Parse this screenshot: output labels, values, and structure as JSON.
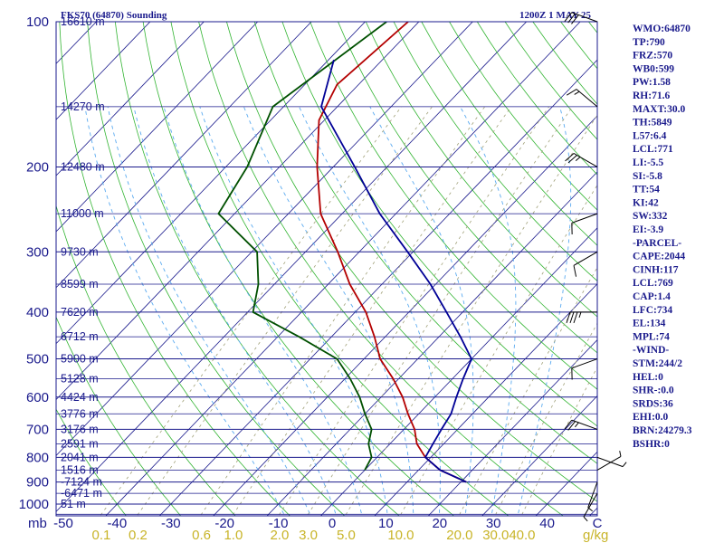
{
  "chart_data": {
    "type": "line",
    "title": "FKS70 (64870) Sounding",
    "valid_time": "1200Z  1 MAY 25",
    "pressure_axis_unit": "mb",
    "temperature_axis_unit": "C",
    "mixing_ratio_unit": "g/kg",
    "pressure_levels": [
      100,
      200,
      300,
      400,
      500,
      600,
      700,
      800,
      900,
      1000
    ],
    "pressure_range": [
      100,
      1050
    ],
    "temperature_ticks": [
      "-50",
      "-40",
      "-30",
      "-20",
      "-10",
      "0",
      "10",
      "20",
      "30",
      "40"
    ],
    "temperature_range": [
      -50,
      50
    ],
    "mixing_ratio_labels": [
      "0.1",
      "0.2",
      "0.6",
      "1.0",
      "2.0",
      "3.0",
      "5.0",
      "10.0",
      "20.0",
      "30.0",
      "40.0"
    ],
    "height_labels": [
      {
        "p": 100,
        "label": "16610 m"
      },
      {
        "p": 150,
        "label": "14270 m"
      },
      {
        "p": 200,
        "label": "12480 m"
      },
      {
        "p": 250,
        "label": "11000 m"
      },
      {
        "p": 300,
        "label": "9730 m"
      },
      {
        "p": 350,
        "label": "8599 m"
      },
      {
        "p": 400,
        "label": "7620 m"
      },
      {
        "p": 450,
        "label": "6712 m"
      },
      {
        "p": 500,
        "label": "5900 m"
      },
      {
        "p": 550,
        "label": "5128 m"
      },
      {
        "p": 600,
        "label": "4424 m"
      },
      {
        "p": 650,
        "label": "3776 m"
      },
      {
        "p": 700,
        "label": "3176 m"
      },
      {
        "p": 750,
        "label": "2591 m"
      },
      {
        "p": 800,
        "label": "2041 m"
      },
      {
        "p": 850,
        "label": "1516 m"
      },
      {
        "p": 900,
        "label": "-7124 m"
      },
      {
        "p": 950,
        "label": "-6471 m"
      },
      {
        "p": 1000,
        "label": "51 m"
      }
    ],
    "series": [
      {
        "name": "Temperature",
        "color": "#b40000",
        "points": [
          [
            100,
            -72
          ],
          [
            135,
            -74
          ],
          [
            160,
            -71
          ],
          [
            200,
            -63
          ],
          [
            250,
            -54
          ],
          [
            300,
            -44
          ],
          [
            350,
            -36
          ],
          [
            400,
            -28
          ],
          [
            450,
            -22
          ],
          [
            500,
            -17
          ],
          [
            550,
            -11
          ],
          [
            600,
            -6
          ],
          [
            650,
            -2
          ],
          [
            700,
            2
          ],
          [
            750,
            5
          ],
          [
            800,
            9
          ],
          [
            850,
            14
          ],
          [
            900,
            21
          ]
        ]
      },
      {
        "name": "Dewpoint",
        "color": "#005000",
        "points": [
          [
            100,
            -76
          ],
          [
            150,
            -82
          ],
          [
            200,
            -76
          ],
          [
            250,
            -73
          ],
          [
            300,
            -59
          ],
          [
            350,
            -53
          ],
          [
            400,
            -49
          ],
          [
            450,
            -36
          ],
          [
            500,
            -25
          ],
          [
            550,
            -19
          ],
          [
            600,
            -14
          ],
          [
            650,
            -10
          ],
          [
            700,
            -6
          ],
          [
            750,
            -4
          ],
          [
            800,
            -1
          ],
          [
            850,
            0
          ]
        ]
      },
      {
        "name": "Parcel",
        "color": "#000096",
        "points": [
          [
            120,
            -79
          ],
          [
            150,
            -73
          ],
          [
            200,
            -56
          ],
          [
            250,
            -43
          ],
          [
            300,
            -31
          ],
          [
            350,
            -21
          ],
          [
            400,
            -13
          ],
          [
            450,
            -6
          ],
          [
            500,
            0
          ],
          [
            550,
            2
          ],
          [
            600,
            4
          ],
          [
            650,
            6
          ],
          [
            700,
            7
          ],
          [
            750,
            8
          ],
          [
            800,
            9
          ],
          [
            850,
            14
          ],
          [
            900,
            21
          ]
        ]
      }
    ],
    "wind_barbs": [
      {
        "p": 100,
        "dir": 290,
        "spd": 30
      },
      {
        "p": 150,
        "dir": 310,
        "spd": 15
      },
      {
        "p": 200,
        "dir": 300,
        "spd": 25
      },
      {
        "p": 250,
        "dir": 250,
        "spd": 10
      },
      {
        "p": 300,
        "dir": 240,
        "spd": 10
      },
      {
        "p": 400,
        "dir": 270,
        "spd": 35
      },
      {
        "p": 500,
        "dir": 250,
        "spd": 10
      },
      {
        "p": 700,
        "dir": 290,
        "spd": 25
      },
      {
        "p": 800,
        "dir": 110,
        "spd": 5
      },
      {
        "p": 850,
        "dir": 60,
        "spd": 5
      },
      {
        "p": 900,
        "dir": 200,
        "spd": 5
      },
      {
        "p": 950,
        "dir": 210,
        "spd": 5
      }
    ],
    "indices": [
      "WMO:64870",
      "TP:790",
      "FRZ:570",
      "WB0:599",
      "PW:1.58",
      "RH:71.6",
      "MAXT:30.0",
      "TH:5849",
      "L57:6.4",
      "LCL:771",
      "LI:-5.5",
      "SI:-5.8",
      "TT:54",
      "KI:42",
      "SW:332",
      "EI:-3.9",
      "-PARCEL-",
      "CAPE:2044",
      "CINH:117",
      "LCL:769",
      "CAP:1.4",
      "LFC:734",
      "EL:134",
      "MPL:74",
      "-WIND-",
      "STM:244/2",
      "HEL:0",
      "SHR-:0.0",
      "SRDS:36",
      "EHI:0.0",
      "BRN:24279.3",
      "BSHR:0"
    ]
  },
  "colors": {
    "frame": "#1a1a8c",
    "isobar": "#1a1a8c",
    "isotherm": "#1a1a8c",
    "dry_adiabat": "#32b432",
    "moist_adiabat": "#5aaaf0",
    "mixing_ratio": "#a0a078",
    "wind": "#000000"
  }
}
